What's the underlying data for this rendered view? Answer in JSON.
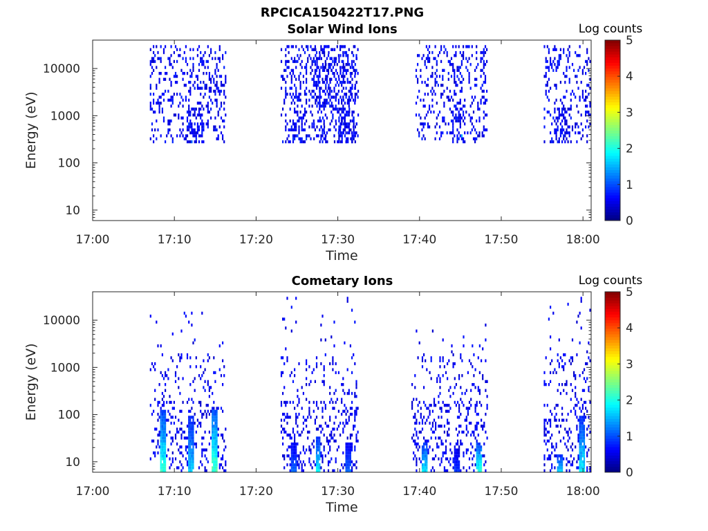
{
  "figure": {
    "title": "RPCICA150422T17.PNG"
  },
  "chart_data": [
    {
      "type": "heatmap",
      "title": "Solar Wind Ions",
      "xlabel": "Time",
      "ylabel": "Energy (eV)",
      "x_tick_labels": [
        "17:00",
        "17:10",
        "17:20",
        "17:30",
        "17:40",
        "17:50",
        "18:00"
      ],
      "x_range_minutes": [
        0,
        61
      ],
      "y_scale": "log",
      "y_range": [
        6,
        40000
      ],
      "y_ticks": [
        10,
        100,
        1000,
        10000
      ],
      "y_tick_labels": [
        "10",
        "100",
        "1000",
        "10000"
      ],
      "colorbar": {
        "title": "Log counts",
        "range": [
          0,
          5
        ],
        "tick_labels": [
          "0",
          "1",
          "2",
          "3",
          "4",
          "5"
        ],
        "colormap": "jet"
      },
      "bursts": [
        {
          "start_min": 7.0,
          "end_min": 16.2,
          "core_min": 12.5,
          "core_halfwidth": 1.1,
          "min_energy_ev": 300,
          "max_energy_ev": 30000,
          "peak_log_counts": 1.2,
          "seed": 11
        },
        {
          "start_min": 23.0,
          "end_min": 32.5,
          "core_min": 25.2,
          "core_halfwidth": 0.9,
          "min_energy_ev": 300,
          "max_energy_ev": 30000,
          "peak_log_counts": 1.0,
          "seed": 23
        },
        {
          "start_min": 27.0,
          "end_min": 32.5,
          "core_min": 31.0,
          "core_halfwidth": 1.1,
          "min_energy_ev": 300,
          "max_energy_ev": 30000,
          "peak_log_counts": 1.0,
          "seed": 37
        },
        {
          "start_min": 39.5,
          "end_min": 48.2,
          "core_min": 44.5,
          "core_halfwidth": 1.0,
          "min_energy_ev": 300,
          "max_energy_ev": 30000,
          "peak_log_counts": 1.6,
          "seed": 41
        },
        {
          "start_min": 55.2,
          "end_min": 61.0,
          "core_min": 57.3,
          "core_halfwidth": 1.0,
          "min_energy_ev": 300,
          "max_energy_ev": 30000,
          "peak_log_counts": 1.0,
          "seed": 53
        }
      ]
    },
    {
      "type": "heatmap",
      "title": "Cometary Ions",
      "xlabel": "Time",
      "ylabel": "Energy (eV)",
      "x_tick_labels": [
        "17:00",
        "17:10",
        "17:20",
        "17:30",
        "17:40",
        "17:50",
        "18:00"
      ],
      "x_range_minutes": [
        0,
        61
      ],
      "y_scale": "log",
      "y_range": [
        6,
        40000
      ],
      "y_ticks": [
        10,
        100,
        1000,
        10000
      ],
      "y_tick_labels": [
        "10",
        "100",
        "1000",
        "10000"
      ],
      "colorbar": {
        "title": "Log counts",
        "range": [
          0,
          5
        ],
        "tick_labels": [
          "0",
          "1",
          "2",
          "3",
          "4",
          "5"
        ],
        "colormap": "jet"
      },
      "bursts": [
        {
          "start_min": 7.0,
          "end_min": 16.2,
          "min_energy_ev": 6,
          "max_energy_ev": 15000,
          "seed": 61,
          "spikes": [
            {
              "min": 8.6,
              "peak": 2.3,
              "top_ev": 120
            },
            {
              "min": 12.0,
              "peak": 1.8,
              "top_ev": 100
            },
            {
              "min": 14.8,
              "peak": 2.5,
              "top_ev": 120
            }
          ]
        },
        {
          "start_min": 23.0,
          "end_min": 32.5,
          "min_energy_ev": 6,
          "max_energy_ev": 30000,
          "seed": 71,
          "spikes": [
            {
              "min": 24.5,
              "peak": 1.2,
              "top_ev": 25
            },
            {
              "min": 27.5,
              "peak": 2.0,
              "top_ev": 35
            },
            {
              "min": 31.2,
              "peak": 1.3,
              "top_ev": 25
            }
          ]
        },
        {
          "start_min": 39.0,
          "end_min": 48.2,
          "min_energy_ev": 6,
          "max_energy_ev": 10000,
          "seed": 83,
          "spikes": [
            {
              "min": 40.6,
              "peak": 2.0,
              "top_ev": 25
            },
            {
              "min": 44.5,
              "peak": 1.0,
              "top_ev": 20
            },
            {
              "min": 47.2,
              "peak": 2.3,
              "top_ev": 25
            }
          ]
        },
        {
          "start_min": 55.2,
          "end_min": 61.0,
          "min_energy_ev": 6,
          "max_energy_ev": 30000,
          "seed": 97,
          "spikes": [
            {
              "min": 57.1,
              "peak": 1.8,
              "top_ev": 15
            },
            {
              "min": 59.8,
              "peak": 2.0,
              "top_ev": 90
            }
          ]
        }
      ]
    }
  ]
}
